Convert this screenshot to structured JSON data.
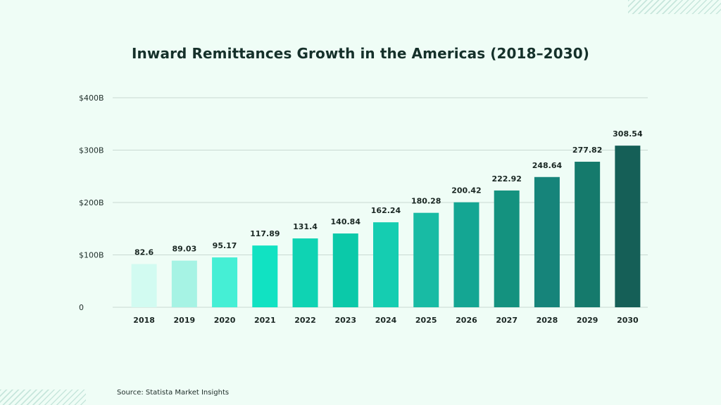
{
  "title": "Inward Remittances Growth in the Americas (2018–2030)",
  "source": "Source: Statista Market Insights",
  "chart_data": {
    "type": "bar",
    "title": "Inward Remittances Growth in the Americas (2018–2030)",
    "categories": [
      "2018",
      "2019",
      "2020",
      "2021",
      "2022",
      "2023",
      "2024",
      "2025",
      "2026",
      "2027",
      "2028",
      "2029",
      "2030"
    ],
    "values": [
      82.6,
      89.03,
      95.17,
      117.89,
      131.4,
      140.84,
      162.24,
      180.28,
      200.42,
      222.92,
      248.64,
      277.82,
      308.54
    ],
    "value_labels": [
      "82.6",
      "89.03",
      "95.17",
      "117.89",
      "131.4",
      "140.84",
      "162.24",
      "180.28",
      "200.42",
      "222.92",
      "248.64",
      "277.82",
      "308.54"
    ],
    "bar_colors": [
      "#d2fbf1",
      "#a6f3e4",
      "#45efd5",
      "#11e2c2",
      "#0fd3b3",
      "#0bc9a9",
      "#15cdb1",
      "#18bba4",
      "#14a693",
      "#14927f",
      "#16847a",
      "#157a6c",
      "#155f57"
    ],
    "ylim": [
      0,
      400
    ],
    "yticks": [
      0,
      100,
      200,
      300,
      400
    ],
    "ytick_labels": [
      "0",
      "$100B",
      "$200B",
      "$300B",
      "$400B"
    ],
    "grid": true,
    "xlabel": "",
    "ylabel": ""
  }
}
